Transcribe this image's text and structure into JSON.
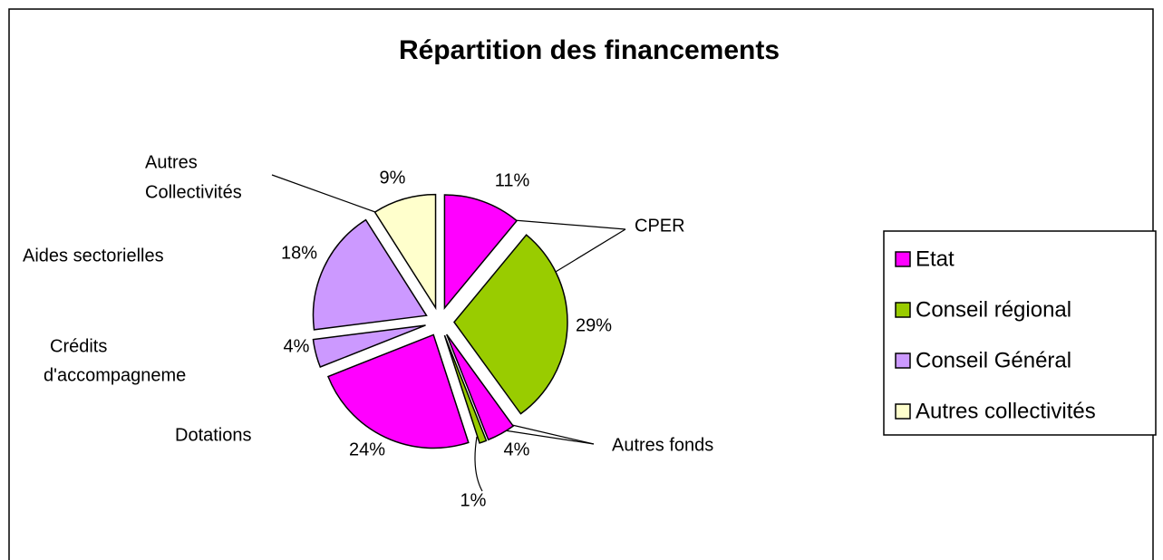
{
  "chart_data": {
    "type": "pie",
    "title": "Répartition des financements",
    "values": [
      11,
      29,
      4,
      1,
      24,
      4,
      18,
      9
    ],
    "value_labels": [
      "11%",
      "29%",
      "4%",
      "1%",
      "24%",
      "4%",
      "18%",
      "9%"
    ],
    "colors": [
      "#ff00ff",
      "#99cc00",
      "#ff00ff",
      "#99cc00",
      "#ff00ff",
      "#cc99ff",
      "#cc99ff",
      "#ffffcc"
    ],
    "annotations": [
      [
        "CPER"
      ],
      [
        "Autres fonds"
      ],
      [
        "Dotations"
      ],
      [
        "Crédits",
        "d'accompagneme"
      ],
      [
        "Aides sectorielles"
      ],
      [
        "Autres",
        "Collectivités"
      ]
    ],
    "series": [
      {
        "name": "Etat",
        "color": "#ff00ff"
      },
      {
        "name": "Conseil régional",
        "color": "#99cc00"
      },
      {
        "name": "Conseil Général",
        "color": "#cc99ff"
      },
      {
        "name": "Autres collectivités",
        "color": "#ffffcc"
      }
    ],
    "legend": "right"
  }
}
